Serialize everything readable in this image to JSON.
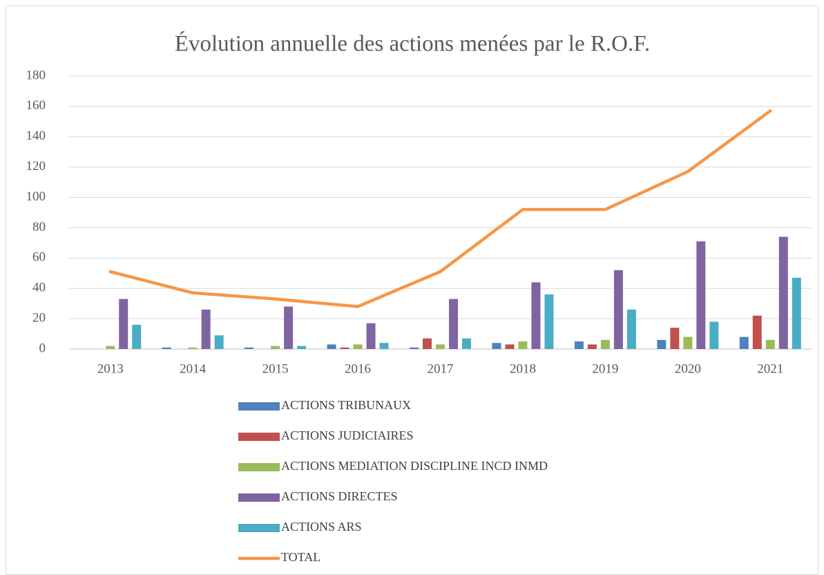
{
  "chart_data": {
    "type": "bar",
    "title": "Évolution annuelle des actions menées par le R.O.F.",
    "categories": [
      "2013",
      "2014",
      "2015",
      "2016",
      "2017",
      "2018",
      "2019",
      "2020",
      "2021"
    ],
    "series": [
      {
        "name": "ACTIONS TRIBUNAUX",
        "color": "#4f81bd",
        "values": [
          0,
          1,
          1,
          3,
          1,
          4,
          5,
          6,
          8
        ]
      },
      {
        "name": "ACTIONS JUDICIAIRES",
        "color": "#c0504d",
        "values": [
          0,
          0,
          0,
          1,
          7,
          3,
          3,
          14,
          22
        ]
      },
      {
        "name": "ACTIONS MEDIATION DISCIPLINE INCD INMD",
        "color": "#9bbb59",
        "values": [
          2,
          1,
          2,
          3,
          3,
          5,
          6,
          8,
          6
        ]
      },
      {
        "name": "ACTIONS DIRECTES",
        "color": "#8064a2",
        "values": [
          33,
          26,
          28,
          17,
          33,
          44,
          52,
          71,
          74
        ]
      },
      {
        "name": "ACTIONS ARS",
        "color": "#4bacc6",
        "values": [
          16,
          9,
          2,
          4,
          7,
          36,
          26,
          18,
          47
        ]
      },
      {
        "name": "TOTAL",
        "color": "#f79646",
        "type": "line",
        "values": [
          51,
          37,
          33,
          28,
          51,
          92,
          92,
          117,
          157
        ]
      }
    ],
    "ylim": [
      0,
      180
    ],
    "yticks": [
      0,
      20,
      40,
      60,
      80,
      100,
      120,
      140,
      160,
      180
    ],
    "grid": true,
    "legend": "bottom"
  }
}
